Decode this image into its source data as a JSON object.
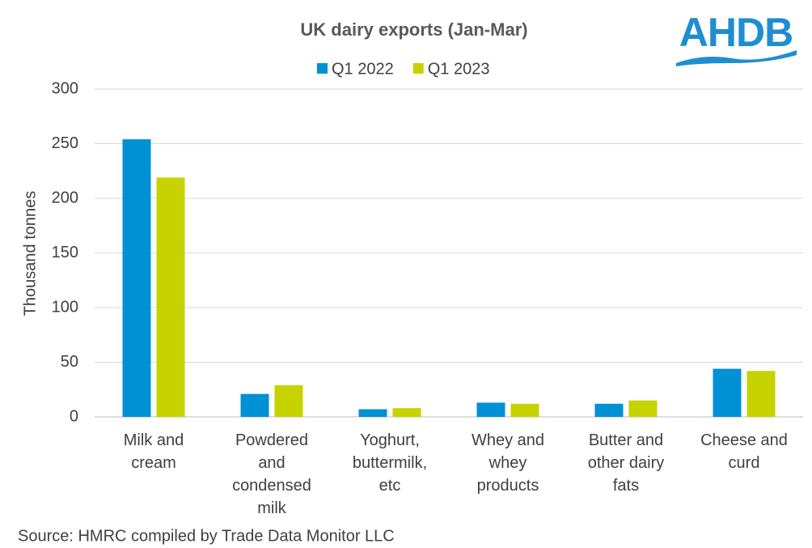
{
  "chart_data": {
    "type": "bar",
    "title": "UK dairy exports (Jan-Mar)",
    "logo": "AHDB",
    "y_label": "Thousand tonnes",
    "source": "Source: HMRC compiled by Trade Data Monitor LLC",
    "categories": [
      "Milk and cream",
      "Powdered and condensed milk",
      "Yoghurt, buttermilk, etc",
      "Whey and whey products",
      "Butter and other dairy fats",
      "Cheese and curd"
    ],
    "series": [
      {
        "name": "Q1 2022",
        "color": "#0090d4",
        "values": [
          254,
          21,
          7,
          13,
          12,
          44
        ]
      },
      {
        "name": "Q1 2023",
        "color": "#c6d300",
        "values": [
          219,
          29,
          8,
          12,
          15,
          42
        ]
      }
    ],
    "ylim": [
      0,
      300
    ],
    "yticks": [
      0,
      50,
      100,
      150,
      200,
      250,
      300
    ],
    "grid": true,
    "legend": "top"
  }
}
